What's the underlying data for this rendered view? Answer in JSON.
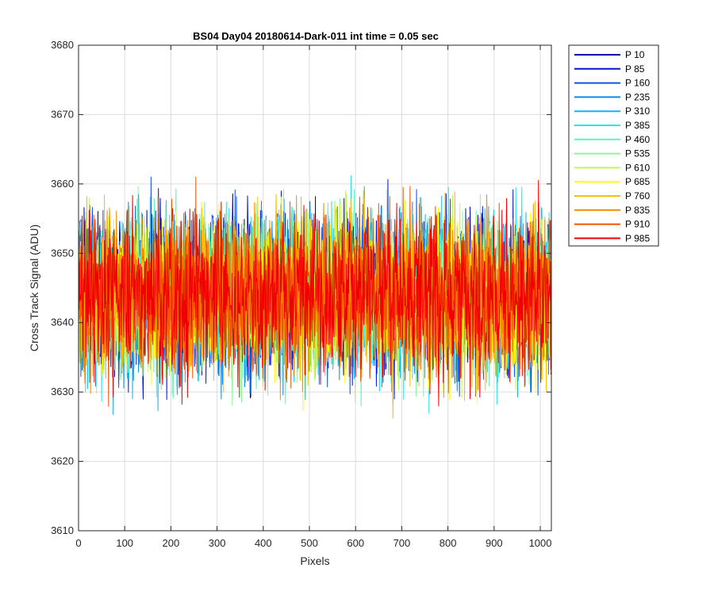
{
  "chart_data": {
    "type": "line",
    "title": "BS04 Day04 20180614-Dark-011 int time = 0.05 sec",
    "xlabel": "Pixels",
    "ylabel": "Cross Track Signal (ADU)",
    "xlim": [
      0,
      1024
    ],
    "ylim": [
      3610,
      3680
    ],
    "xticks": [
      0,
      100,
      200,
      300,
      400,
      500,
      600,
      700,
      800,
      900,
      1000
    ],
    "yticks": [
      3610,
      3620,
      3630,
      3640,
      3650,
      3660,
      3670,
      3680
    ],
    "grid": true,
    "legend_position": "outside-right",
    "points_per_series": 1024,
    "noise_mean": 3644,
    "noise_amplitude": 9,
    "series": [
      {
        "name": "P 10",
        "color": "#0000a8"
      },
      {
        "name": "P 85",
        "color": "#0015d6"
      },
      {
        "name": "P 160",
        "color": "#0a55e6"
      },
      {
        "name": "P 235",
        "color": "#0d87e8"
      },
      {
        "name": "P 310",
        "color": "#13b4ee"
      },
      {
        "name": "P 385",
        "color": "#1fe6f0"
      },
      {
        "name": "P 460",
        "color": "#5ef0c0"
      },
      {
        "name": "P 535",
        "color": "#8ef39a"
      },
      {
        "name": "P 610",
        "color": "#c4f55a"
      },
      {
        "name": "P 685",
        "color": "#ffff00"
      },
      {
        "name": "P 760",
        "color": "#f5c000"
      },
      {
        "name": "P 835",
        "color": "#f58a00"
      },
      {
        "name": "P 910",
        "color": "#f25500"
      },
      {
        "name": "P 985",
        "color": "#f00000"
      }
    ]
  }
}
